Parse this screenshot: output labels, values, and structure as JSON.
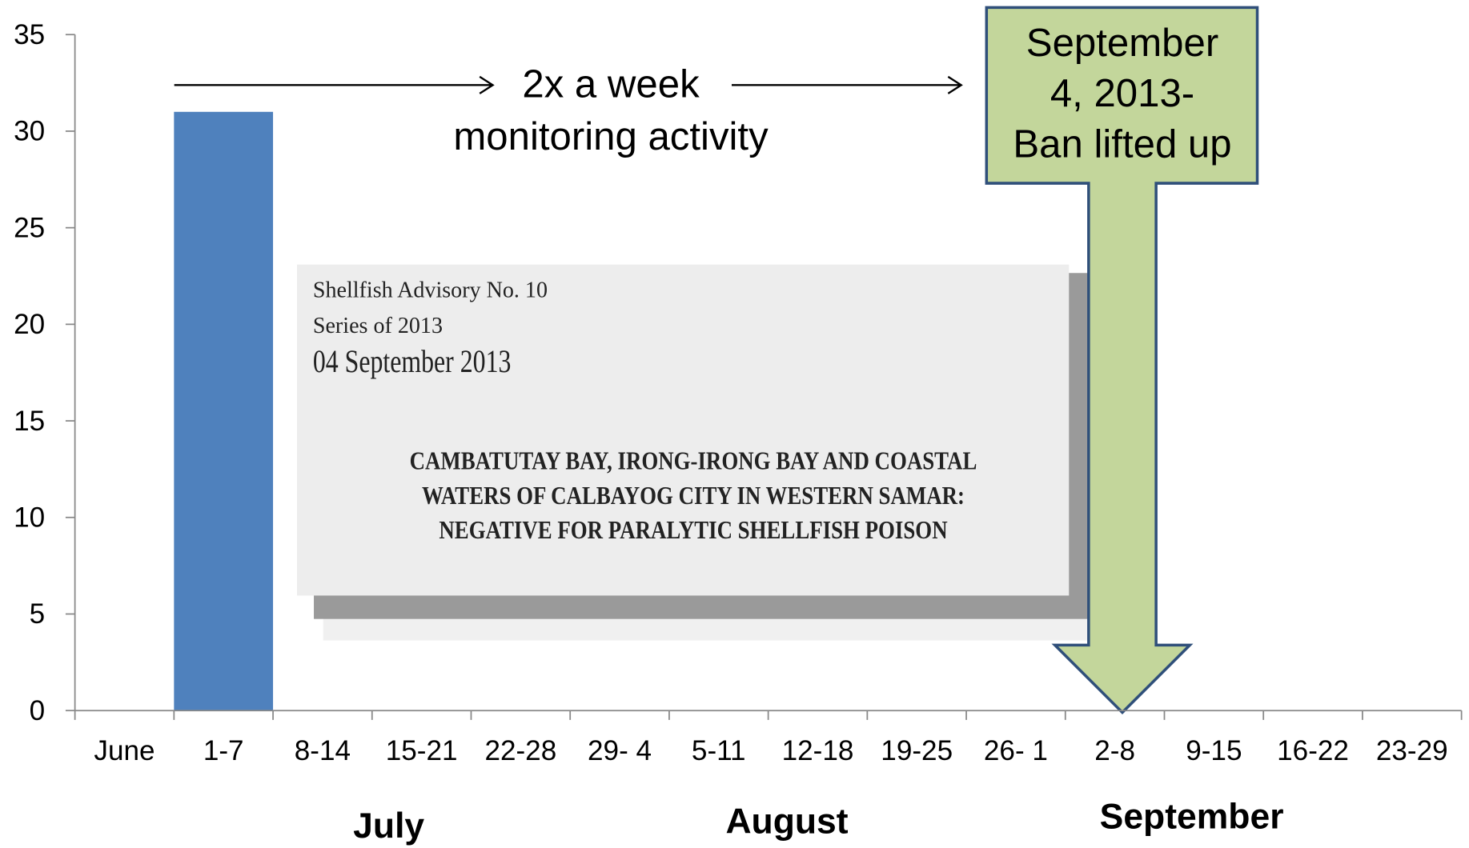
{
  "chart_data": {
    "type": "bar",
    "categories": [
      "June",
      "1-7",
      "8-14",
      "15-21",
      "22-28",
      "29- 4",
      "5-11",
      "12-18",
      "19-25",
      "26- 1",
      "2-8",
      "9-15",
      "16-22",
      "23-29"
    ],
    "values": [
      null,
      31,
      null,
      null,
      null,
      null,
      null,
      null,
      null,
      null,
      null,
      null,
      null,
      null
    ],
    "color": "#4f81bd",
    "ylim": [
      0,
      35
    ],
    "yticks": [
      0,
      5,
      10,
      15,
      20,
      25,
      30,
      35
    ],
    "group_labels": [
      "July",
      "August",
      "September"
    ],
    "annotation_lines": [
      "2x a week",
      "monitoring activity"
    ],
    "callout_lines": [
      "September",
      "4, 2013-",
      "Ban lifted up"
    ],
    "advisory": {
      "header": [
        "Shellfish Advisory No. 10",
        "Series of 2013",
        "04 September 2013"
      ],
      "body": [
        "CAMBATUTAY BAY, IRONG-IRONG BAY AND COASTAL",
        "WATERS OF CALBAYOG CITY IN WESTERN SAMAR:",
        "NEGATIVE FOR PARALYTIC SHELLFISH POISON"
      ]
    }
  }
}
